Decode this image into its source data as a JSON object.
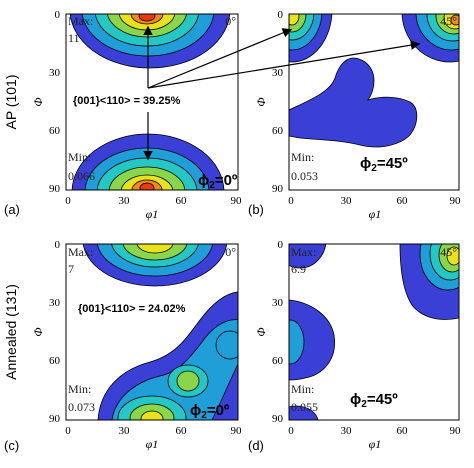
{
  "figure": {
    "row_labels": [
      "AP (101)",
      "Annealed (131)"
    ],
    "x_axis_symbol": "φ1",
    "y_axis_symbol": "Φ",
    "x_ticks": [
      "0",
      "30",
      "60",
      "90"
    ],
    "y_ticks": [
      "0",
      "30",
      "60",
      "90"
    ],
    "panels": [
      {
        "letter": "(a)",
        "angle_label": "0°",
        "max_label": "Max:",
        "max_value": "11",
        "min_label": "Min:",
        "min_value": "0.066",
        "phi2_symbol": "ϕ",
        "phi2_sub": "2",
        "phi2_value": "=0º"
      },
      {
        "letter": "(b)",
        "angle_label": "45°",
        "max_label": "",
        "max_value": "",
        "min_label": "Min:",
        "min_value": "0.053",
        "phi2_symbol": "ϕ",
        "phi2_sub": "2",
        "phi2_value": "=45º"
      },
      {
        "letter": "(c)",
        "angle_label": "0°",
        "max_label": "Max:",
        "max_value": "7",
        "min_label": "Min:",
        "min_value": "0.073",
        "phi2_symbol": "ϕ",
        "phi2_sub": "2",
        "phi2_value": "=0º"
      },
      {
        "letter": "(d)",
        "angle_label": "45°",
        "max_label": "Max:",
        "max_value": "6.9",
        "min_label": "Min:",
        "min_value": "0.055",
        "phi2_symbol": "ϕ",
        "phi2_sub": "2",
        "phi2_value": "=45º"
      }
    ],
    "annotations": {
      "ap_texture": "{001}<110> = 39.25%",
      "annealed_texture": "{001}<110> = 24.02%"
    },
    "colors": {
      "level1": "#3a3fd6",
      "level2": "#1f9ed8",
      "level3": "#25c7c4",
      "level4": "#8ad64a",
      "level5": "#e8e21c",
      "level6": "#f28a1a",
      "level7": "#e83a10"
    }
  }
}
